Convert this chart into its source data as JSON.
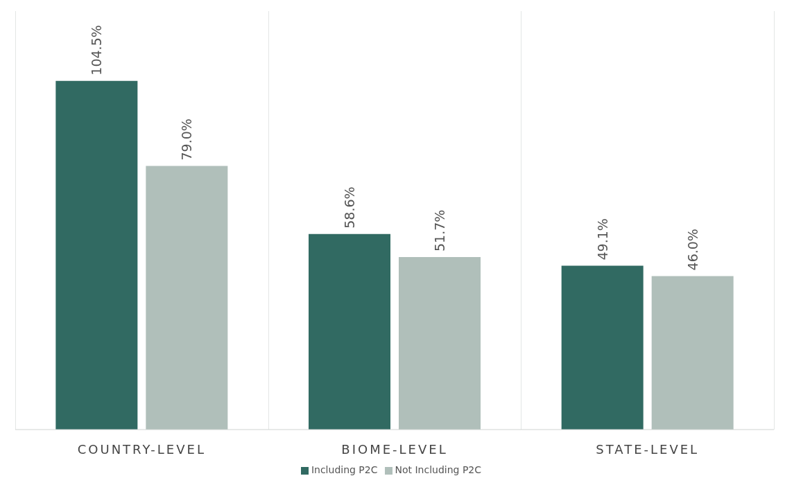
{
  "chart_data": {
    "type": "bar",
    "categories": [
      "COUNTRY-LEVEL",
      "BIOME-LEVEL",
      "STATE-LEVEL"
    ],
    "series": [
      {
        "name": "Including P2C",
        "color": "#316a62",
        "values": [
          104.5,
          58.6,
          49.1
        ],
        "value_labels": [
          "104.5%",
          "58.6%",
          "49.1%"
        ]
      },
      {
        "name": "Not Including P2C",
        "color": "#b0bfba",
        "values": [
          79.0,
          51.7,
          46.0
        ],
        "value_labels": [
          "79.0%",
          "51.7%",
          "46.0%"
        ]
      }
    ],
    "legend": "bottom"
  }
}
